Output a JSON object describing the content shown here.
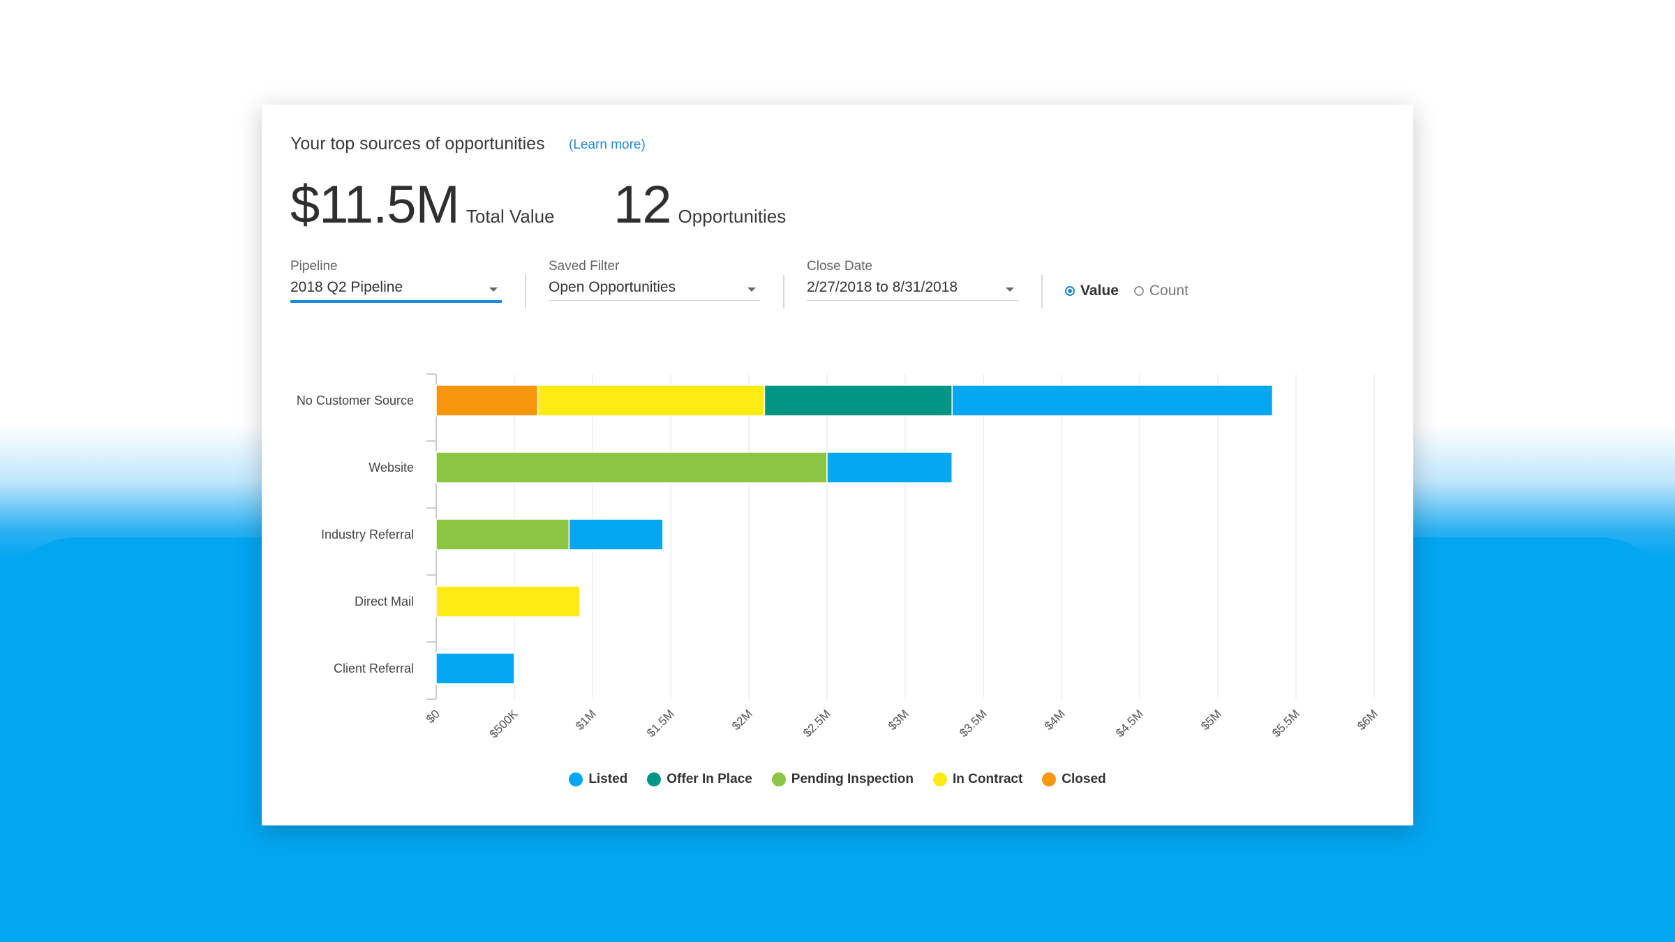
{
  "header": {
    "title": "Your top sources of opportunities",
    "learn_more": "(Learn more)"
  },
  "metrics": {
    "total_value": "$11.5M",
    "total_value_label": "Total Value",
    "opportunities": "12",
    "opportunities_label": "Opportunities"
  },
  "filters": {
    "pipeline": {
      "label": "Pipeline",
      "value": "2018 Q2 Pipeline"
    },
    "saved_filter": {
      "label": "Saved Filter",
      "value": "Open Opportunities"
    },
    "close_date": {
      "label": "Close Date",
      "value": "2/27/2018 to 8/31/2018"
    },
    "mode": {
      "value_label": "Value",
      "count_label": "Count",
      "selected": "Value"
    }
  },
  "chart_data": {
    "type": "bar",
    "orientation": "horizontal",
    "stacked": true,
    "categories": [
      "No Customer Source",
      "Website",
      "Industry Referral",
      "Direct Mail",
      "Client Referral"
    ],
    "series": [
      {
        "name": "Closed",
        "color": "#f7970e",
        "values": [
          650000,
          0,
          0,
          0,
          0
        ]
      },
      {
        "name": "In Contract",
        "color": "#ffeb14",
        "values": [
          1450000,
          0,
          0,
          920000,
          0
        ]
      },
      {
        "name": "Pending Inspection",
        "color": "#8bc541",
        "values": [
          0,
          2500000,
          850000,
          0,
          0
        ]
      },
      {
        "name": "Offer In Place",
        "color": "#009686",
        "values": [
          1200000,
          0,
          0,
          0,
          0
        ]
      },
      {
        "name": "Listed",
        "color": "#03a7f0",
        "values": [
          2050000,
          800000,
          600000,
          0,
          500000
        ]
      }
    ],
    "xlim": [
      0,
      6000000
    ],
    "x_ticks": [
      "$0",
      "$500K",
      "$1M",
      "$1.5M",
      "$2M",
      "$2.5M",
      "$3M",
      "$3.5M",
      "$4M",
      "$4.5M",
      "$5M",
      "$5.5M",
      "$6M"
    ],
    "grid": true,
    "legend_order": [
      "Listed",
      "Offer In Place",
      "Pending Inspection",
      "In Contract",
      "Closed"
    ],
    "legend_position": "bottom"
  }
}
